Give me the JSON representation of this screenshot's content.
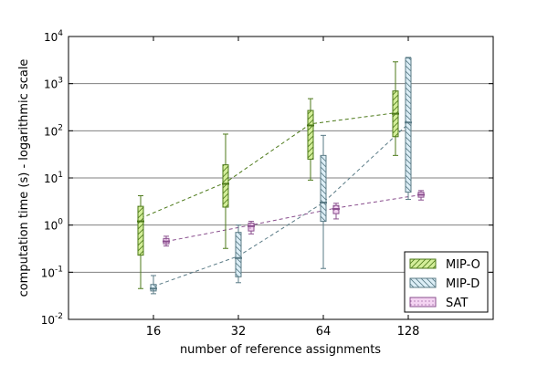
{
  "chart_data": {
    "type": "boxplot",
    "title": "",
    "xlabel": "number of reference assignments",
    "ylabel": "computation time (s) - logarithmic scale",
    "yscale": "log",
    "ylim": [
      0.01,
      10000
    ],
    "grid": "horizontal",
    "legend_position": "lower-right",
    "categories": [
      "16",
      "32",
      "64",
      "128"
    ],
    "yticks": [
      {
        "value": 0.01,
        "base": "10",
        "exp": "-2"
      },
      {
        "value": 0.1,
        "base": "10",
        "exp": "-1"
      },
      {
        "value": 1,
        "base": "10",
        "exp": "0"
      },
      {
        "value": 10,
        "base": "10",
        "exp": "1"
      },
      {
        "value": 100,
        "base": "10",
        "exp": "2"
      },
      {
        "value": 1000,
        "base": "10",
        "exp": "3"
      },
      {
        "value": 10000,
        "base": "10",
        "exp": "4"
      }
    ],
    "series": [
      {
        "name": "MIP-O",
        "color": "#4d7a1a",
        "fill": "#d4ee9a",
        "hatch": "diag-right",
        "boxes": [
          {
            "whisker_low": 0.045,
            "q1": 0.23,
            "median": 1.2,
            "q3": 2.5,
            "whisker_high": 4.2
          },
          {
            "whisker_low": 0.32,
            "q1": 2.4,
            "median": 7.5,
            "q3": 19,
            "whisker_high": 85
          },
          {
            "whisker_low": 9,
            "q1": 25,
            "median": 130,
            "q3": 270,
            "whisker_high": 480
          },
          {
            "whisker_low": 30,
            "q1": 75,
            "median": 230,
            "q3": 700,
            "whisker_high": 2900
          }
        ],
        "mean": [
          1.4,
          8,
          140,
          240
        ]
      },
      {
        "name": "MIP-D",
        "color": "#5a7b86",
        "fill": "#dceef6",
        "hatch": "diag-left",
        "boxes": [
          {
            "whisker_low": 0.035,
            "q1": 0.04,
            "median": 0.045,
            "q3": 0.055,
            "whisker_high": 0.085
          },
          {
            "whisker_low": 0.06,
            "q1": 0.08,
            "median": 0.2,
            "q3": 0.7,
            "whisker_high": 1.0
          },
          {
            "whisker_low": 0.12,
            "q1": 1.2,
            "median": 3,
            "q3": 30,
            "whisker_high": 80
          },
          {
            "whisker_low": 3.5,
            "q1": 5,
            "median": 150,
            "q3": 3500,
            "whisker_high": 3600
          }
        ],
        "mean": [
          0.05,
          0.22,
          3,
          140
        ]
      },
      {
        "name": "SAT",
        "color": "#8a4f8e",
        "fill": "#f4d4f2",
        "hatch": "dots",
        "boxes": [
          {
            "whisker_low": 0.36,
            "q1": 0.4,
            "median": 0.45,
            "q3": 0.52,
            "whisker_high": 0.58
          },
          {
            "whisker_low": 0.65,
            "q1": 0.75,
            "median": 0.95,
            "q3": 1.1,
            "whisker_high": 1.2
          },
          {
            "whisker_low": 1.35,
            "q1": 1.75,
            "median": 2.2,
            "q3": 2.6,
            "whisker_high": 2.9
          },
          {
            "whisker_low": 3.4,
            "q1": 3.9,
            "median": 4.4,
            "q3": 5.0,
            "whisker_high": 5.4
          }
        ],
        "mean": [
          0.45,
          1.0,
          2.3,
          4.4
        ]
      }
    ]
  }
}
